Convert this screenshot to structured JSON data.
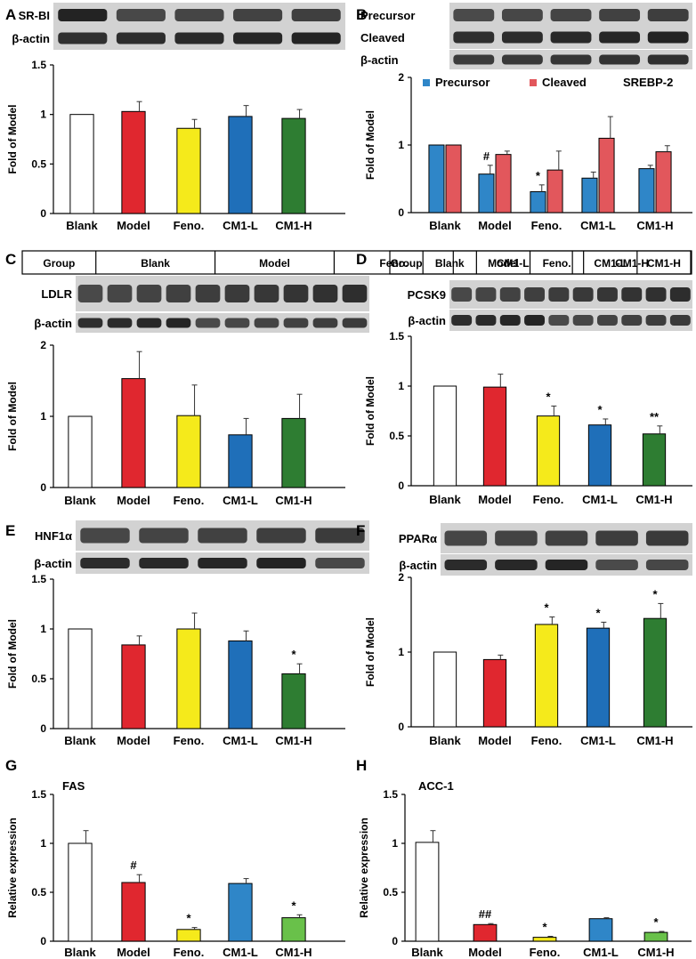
{
  "panels": [
    {
      "letter": "A",
      "blots": [
        {
          "label": "SR-BI",
          "lanes": 5
        },
        {
          "label": "β-actin",
          "lanes": 5
        }
      ],
      "group_header": null,
      "chart_data": {
        "type": "bar",
        "categories": [
          "Blank",
          "Model",
          "Feno.",
          "CM1-L",
          "CM1-H"
        ],
        "series": [
          {
            "values": [
              1.0,
              1.03,
              0.86,
              0.98,
              0.96
            ],
            "errors": [
              0,
              0.1,
              0.09,
              0.11,
              0.09
            ],
            "marks": [
              "",
              "",
              "",
              "",
              ""
            ]
          }
        ],
        "colors": [
          "#ffffff",
          "#e0272f",
          "#f5ea1b",
          "#1f6fb9",
          "#2e7d32"
        ],
        "ylabel": "Fold of Model",
        "yticks": [
          "0",
          "0.5",
          "1",
          "1.5"
        ],
        "ylim": [
          0,
          1.5
        ],
        "legend": [],
        "legend_extra": ""
      }
    },
    {
      "letter": "B",
      "blots": [
        {
          "label": "Precursor",
          "lanes": 5
        },
        {
          "label": "Cleaved",
          "lanes": 5
        },
        {
          "label": "β-actin",
          "lanes": 5
        }
      ],
      "group_header": null,
      "chart_data": {
        "type": "bar",
        "categories": [
          "Blank",
          "Model",
          "Feno.",
          "CM1-L",
          "CM1-H"
        ],
        "series": [
          {
            "name": "Precursor",
            "values": [
              1.0,
              0.57,
              0.31,
              0.51,
              0.65
            ],
            "errors": [
              0,
              0.13,
              0.1,
              0.09,
              0.05
            ],
            "marks": [
              "",
              "#",
              "*",
              "",
              ""
            ]
          },
          {
            "name": "Cleaved",
            "values": [
              1.0,
              0.86,
              0.63,
              1.1,
              0.9
            ],
            "errors": [
              0,
              0.05,
              0.28,
              0.32,
              0.09
            ],
            "marks": [
              "",
              "",
              "",
              "",
              ""
            ]
          }
        ],
        "colors": [
          "#2f86c8",
          "#e2575c"
        ],
        "ylabel": "Fold of Model",
        "yticks": [
          "0",
          "1",
          "2"
        ],
        "ylim": [
          0,
          2
        ],
        "legend": [
          "Precursor",
          "Cleaved"
        ],
        "legend_extra": "SREBP-2"
      }
    },
    {
      "letter": "C",
      "blots": [
        {
          "label": "LDLR",
          "lanes": 10
        },
        {
          "label": "β-actin",
          "lanes": 10
        }
      ],
      "group_header": {
        "label": "Group",
        "groups": [
          "Blank",
          "Model",
          "Feno.",
          "CM1-L",
          "CM1-H"
        ]
      },
      "chart_data": {
        "type": "bar",
        "categories": [
          "Blank",
          "Model",
          "Feno.",
          "CM1-L",
          "CM1-H"
        ],
        "series": [
          {
            "values": [
              1.0,
              1.53,
              1.01,
              0.74,
              0.97
            ],
            "errors": [
              0,
              0.38,
              0.43,
              0.23,
              0.34
            ],
            "marks": [
              "",
              "",
              "",
              "",
              ""
            ]
          }
        ],
        "colors": [
          "#ffffff",
          "#e0272f",
          "#f5ea1b",
          "#1f6fb9",
          "#2e7d32"
        ],
        "ylabel": "Fold of Model",
        "yticks": [
          "0",
          "1",
          "2"
        ],
        "ylim": [
          0,
          2
        ],
        "legend": [],
        "legend_extra": ""
      }
    },
    {
      "letter": "D",
      "blots": [
        {
          "label": "PCSK9",
          "lanes": 10
        },
        {
          "label": "β-actin",
          "lanes": 10
        }
      ],
      "group_header": {
        "label": "Group",
        "groups": [
          "Blank",
          "Model",
          "Feno.",
          "CM1-L",
          "CM1-H"
        ]
      },
      "chart_data": {
        "type": "bar",
        "categories": [
          "Blank",
          "Model",
          "Feno.",
          "CM1-L",
          "CM1-H"
        ],
        "series": [
          {
            "values": [
              1.0,
              0.99,
              0.7,
              0.61,
              0.52
            ],
            "errors": [
              0,
              0.13,
              0.1,
              0.06,
              0.08
            ],
            "marks": [
              "",
              "",
              "*",
              "*",
              "**"
            ]
          }
        ],
        "colors": [
          "#ffffff",
          "#e0272f",
          "#f5ea1b",
          "#1f6fb9",
          "#2e7d32"
        ],
        "ylabel": "Fold of Model",
        "yticks": [
          "0",
          "0.5",
          "1",
          "1.5"
        ],
        "ylim": [
          0,
          1.5
        ],
        "legend": [],
        "legend_extra": ""
      }
    },
    {
      "letter": "E",
      "blots": [
        {
          "label": "HNF1α",
          "lanes": 5
        },
        {
          "label": "β-actin",
          "lanes": 5
        }
      ],
      "group_header": null,
      "chart_data": {
        "type": "bar",
        "categories": [
          "Blank",
          "Model",
          "Feno.",
          "CM1-L",
          "CM1-H"
        ],
        "series": [
          {
            "values": [
              1.0,
              0.84,
              1.0,
              0.88,
              0.55
            ],
            "errors": [
              0,
              0.09,
              0.16,
              0.1,
              0.1
            ],
            "marks": [
              "",
              "",
              "",
              "",
              "*"
            ]
          }
        ],
        "colors": [
          "#ffffff",
          "#e0272f",
          "#f5ea1b",
          "#1f6fb9",
          "#2e7d32"
        ],
        "ylabel": "Fold of Model",
        "yticks": [
          "0",
          "0.5",
          "1",
          "1.5"
        ],
        "ylim": [
          0,
          1.5
        ],
        "legend": [],
        "legend_extra": ""
      }
    },
    {
      "letter": "F",
      "blots": [
        {
          "label": "PPARα",
          "lanes": 5
        },
        {
          "label": "β-actin",
          "lanes": 5
        }
      ],
      "group_header": null,
      "chart_data": {
        "type": "bar",
        "categories": [
          "Blank",
          "Model",
          "Feno.",
          "CM1-L",
          "CM1-H"
        ],
        "series": [
          {
            "values": [
              1.0,
              0.9,
              1.37,
              1.32,
              1.45
            ],
            "errors": [
              0,
              0.06,
              0.1,
              0.08,
              0.2
            ],
            "marks": [
              "",
              "",
              "*",
              "*",
              "*"
            ]
          }
        ],
        "colors": [
          "#ffffff",
          "#e0272f",
          "#f5ea1b",
          "#1f6fb9",
          "#2e7d32"
        ],
        "ylabel": "Fold of Model",
        "yticks": [
          "0",
          "1",
          "2"
        ],
        "ylim": [
          0,
          2
        ],
        "legend": [],
        "legend_extra": ""
      }
    },
    {
      "letter": "G",
      "blots": [],
      "group_header": null,
      "chart_data": {
        "type": "bar",
        "title": "FAS",
        "categories": [
          "Blank",
          "Model",
          "Feno.",
          "CM1-L",
          "CM1-H"
        ],
        "series": [
          {
            "values": [
              1.0,
              0.6,
              0.12,
              0.59,
              0.24
            ],
            "errors": [
              0.13,
              0.08,
              0.02,
              0.05,
              0.03
            ],
            "marks": [
              "",
              "#",
              "*",
              "",
              "*"
            ]
          }
        ],
        "colors": [
          "#ffffff",
          "#e0272f",
          "#f5ea1b",
          "#2f86c8",
          "#69c14a"
        ],
        "ylabel": "Relative expression",
        "yticks": [
          "0",
          "0.5",
          "1",
          "1.5"
        ],
        "ylim": [
          0,
          1.5
        ],
        "legend": [],
        "legend_extra": ""
      }
    },
    {
      "letter": "H",
      "blots": [],
      "group_header": null,
      "chart_data": {
        "type": "bar",
        "title": "ACC-1",
        "categories": [
          "Blank",
          "Model",
          "Feno.",
          "CM1-L",
          "CM1-H"
        ],
        "series": [
          {
            "values": [
              1.01,
              0.17,
              0.04,
              0.23,
              0.09
            ],
            "errors": [
              0.12,
              0.01,
              0.01,
              0.01,
              0.01
            ],
            "marks": [
              "",
              "##",
              "*",
              "",
              "*"
            ]
          }
        ],
        "colors": [
          "#ffffff",
          "#e0272f",
          "#f5ea1b",
          "#2f86c8",
          "#69c14a"
        ],
        "ylabel": "Relative expression",
        "yticks": [
          "0",
          "0.5",
          "1",
          "1.5"
        ],
        "ylim": [
          0,
          1.5
        ],
        "legend": [],
        "legend_extra": ""
      }
    }
  ]
}
